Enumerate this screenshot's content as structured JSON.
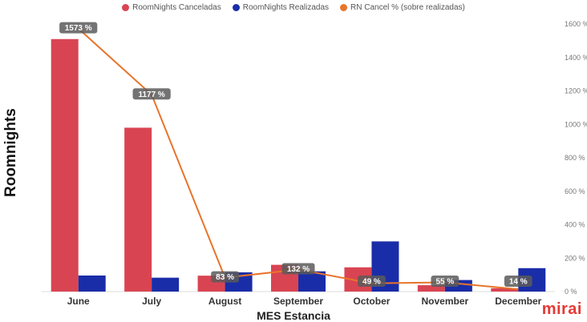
{
  "brand": "mirai",
  "chart_data": {
    "type": "bar",
    "title": "",
    "xlabel": "MES Estancia",
    "ylabel": "Roomnights",
    "categories": [
      "June",
      "July",
      "August",
      "September",
      "October",
      "November",
      "December"
    ],
    "series": [
      {
        "name": "RoomNights Canceladas",
        "type": "bar",
        "axis": "left",
        "color": "#d94452",
        "values": [
          1510,
          980,
          95,
          160,
          145,
          38,
          20
        ]
      },
      {
        "name": "RoomNights Realizadas",
        "type": "bar",
        "axis": "left",
        "color": "#1a2da8",
        "values": [
          96,
          83,
          115,
          121,
          300,
          69,
          140
        ]
      },
      {
        "name": "RN Cancel % (sobre realizadas)",
        "type": "line",
        "axis": "right",
        "color": "#e8742a",
        "values": [
          1573,
          1177,
          83,
          132,
          49,
          55,
          14
        ],
        "labels": [
          "1573 %",
          "1177 %",
          "83 %",
          "132 %",
          "49 %",
          "55 %",
          "14 %"
        ]
      }
    ],
    "left_axis": {
      "ylim": [
        0,
        1600
      ]
    },
    "right_axis": {
      "ylim": [
        0,
        1600
      ],
      "ticks": [
        0,
        200,
        400,
        600,
        800,
        1000,
        1200,
        1400,
        1600
      ],
      "tick_labels": [
        "0 %",
        "200 %",
        "400 %",
        "600 %",
        "800 %",
        "1000 %",
        "1200 %",
        "1400 %",
        "1600 %"
      ]
    },
    "legend_position": "top",
    "grid": false
  }
}
